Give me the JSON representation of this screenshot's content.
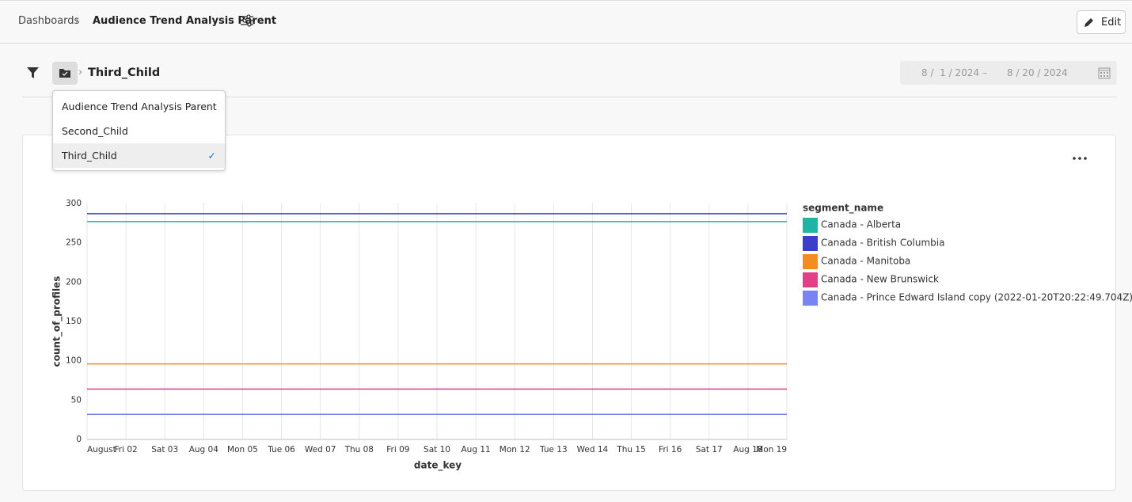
{
  "header": {
    "breadcrumb": "Dashboards",
    "title": "Audience Trend Analysis Parent",
    "edit": "Edit"
  },
  "filter": {
    "current": "Third_Child",
    "date_start": "8 /  1 / 2024",
    "date_separator": "–",
    "date_end": "8 / 20 / 2024"
  },
  "dropdown": {
    "items": [
      "Audience Trend Analysis Parent",
      "Second_Child",
      "Third_Child"
    ],
    "selected": 2
  },
  "chart_data": {
    "type": "line",
    "x_label": "date_key",
    "y_label": "count_of_profiles",
    "legend_title": "segment_name",
    "categories": [
      "August",
      "Fri 02",
      "Sat 03",
      "Aug 04",
      "Mon 05",
      "Tue 06",
      "Wed 07",
      "Thu 08",
      "Fri 09",
      "Sat 10",
      "Aug 11",
      "Mon 12",
      "Tue 13",
      "Wed 14",
      "Thu 15",
      "Fri 16",
      "Sat 17",
      "Aug 18",
      "Mon 19"
    ],
    "series": [
      {
        "name": "Canada - Alberta",
        "color": "#1fb5a5",
        "values": [
          277,
          277,
          277,
          277,
          277,
          277,
          277,
          277,
          277,
          277,
          277,
          277,
          277,
          277,
          277,
          277,
          277,
          277,
          277
        ]
      },
      {
        "name": "Canada - British Columbia",
        "color": "#3d3dcc",
        "values": [
          287,
          287,
          287,
          287,
          287,
          287,
          287,
          287,
          287,
          287,
          287,
          287,
          287,
          287,
          287,
          287,
          287,
          287,
          287
        ]
      },
      {
        "name": "Canada - Manitoba",
        "color": "#f68b1f",
        "values": [
          96,
          96,
          96,
          96,
          96,
          96,
          96,
          96,
          96,
          96,
          96,
          96,
          96,
          96,
          96,
          96,
          96,
          96,
          96
        ]
      },
      {
        "name": "Canada - New Brunswick",
        "color": "#e23f86",
        "values": [
          64,
          64,
          64,
          64,
          64,
          64,
          64,
          64,
          64,
          64,
          64,
          64,
          64,
          64,
          64,
          64,
          64,
          64,
          64
        ]
      },
      {
        "name": "Canada - Prince Edward Island copy (2022-01-20T20:22:49.704Z)",
        "color": "#7b83f2",
        "values": [
          32,
          32,
          32,
          32,
          32,
          32,
          32,
          32,
          32,
          32,
          32,
          32,
          32,
          32,
          32,
          32,
          32,
          32,
          32
        ]
      }
    ],
    "ylim": [
      0,
      300
    ],
    "yticks": [
      0,
      50,
      100,
      150,
      200,
      250,
      300
    ],
    "grid": true,
    "legend": "right"
  }
}
